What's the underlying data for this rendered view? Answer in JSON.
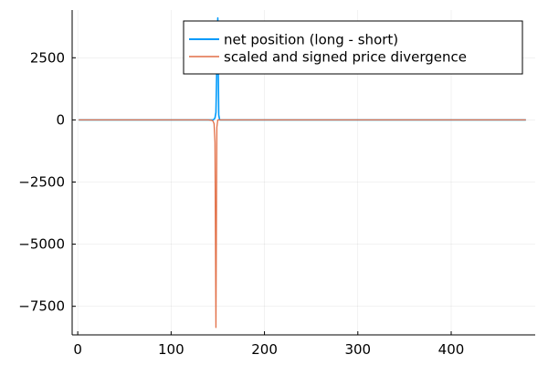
{
  "chart_data": {
    "type": "line",
    "title": "",
    "xlabel": "",
    "ylabel": "",
    "xlim": [
      -6,
      490
    ],
    "ylim": [
      -8650,
      4420
    ],
    "xticks": [
      0,
      100,
      200,
      300,
      400
    ],
    "xtick_labels": [
      "0",
      "100",
      "200",
      "300",
      "400"
    ],
    "yticks": [
      -7500,
      -5000,
      -2500,
      0,
      2500
    ],
    "ytick_labels": [
      "−7500",
      "−5000",
      "−2500",
      "0",
      "2500"
    ],
    "grid": true,
    "legend_position": "top-right",
    "series": [
      {
        "name": "net position (long - short)",
        "color": "#009AFA",
        "x": [
          1,
          140,
          145,
          146,
          147,
          148,
          149,
          150,
          151,
          152,
          160,
          480
        ],
        "y": [
          0,
          0,
          0,
          30,
          80,
          300,
          2200,
          4100,
          200,
          0,
          0,
          0
        ]
      },
      {
        "name": "scaled and signed price divergence",
        "color": "#E26F46",
        "x": [
          1,
          140,
          144,
          145,
          146,
          147,
          148,
          149,
          150,
          155,
          480
        ],
        "y": [
          0,
          0,
          -20,
          -60,
          -150,
          -900,
          -8350,
          -300,
          0,
          0,
          0
        ]
      }
    ]
  }
}
